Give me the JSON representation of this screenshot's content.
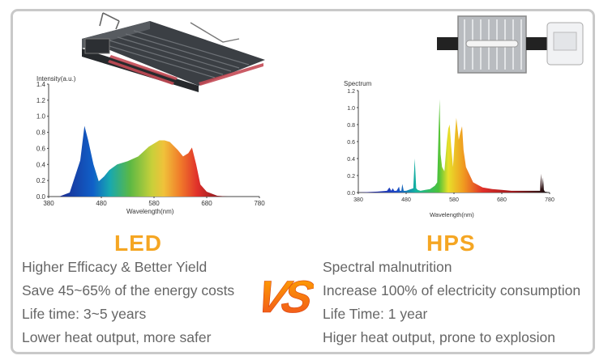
{
  "colors": {
    "accent": "#f5a623",
    "vs_gradient_top": "#ffa800",
    "vs_gradient_bottom": "#f04e1e",
    "text": "#666666",
    "frame": "#c9c9c9"
  },
  "icons": {
    "led_fixture": "led-grow-light-bar",
    "hps_fixture": "hps-reflector-lamp",
    "vs_logo": "versus-logo"
  },
  "led": {
    "heading": "LED",
    "features": [
      "Higher Efficacy & Better Yield",
      "Save 45~65% of the energy costs",
      "Life time: 3~5 years",
      "Lower heat output, more safer"
    ],
    "chart": {
      "ylabel": "Intensity(a.u.)",
      "xlabel": "Wavelength(nm)",
      "yticks": [
        "0.0",
        "0.2",
        "0.4",
        "0.6",
        "0.8",
        "1.0",
        "1.2",
        "1.4"
      ],
      "xticks": [
        "380",
        "480",
        "580",
        "680",
        "780"
      ]
    }
  },
  "hps": {
    "heading": "HPS",
    "features": [
      "Spectral malnutrition",
      "Increase 100% of electricity consumption",
      "Life Time: 1 year",
      "Higer heat output, prone to explosion"
    ],
    "chart": {
      "ylabel": "Spectrum",
      "xlabel": "Wavelength(nm)",
      "yticks": [
        "0.0",
        "0.2",
        "0.4",
        "0.6",
        "0.8",
        "1.0",
        "1.2"
      ],
      "xticks": [
        "380",
        "480",
        "580",
        "680",
        "780"
      ]
    }
  },
  "vs_text": "VS",
  "chart_data": [
    {
      "type": "area",
      "title": "",
      "xlabel": "Wavelength(nm)",
      "ylabel": "Intensity(a.u.)",
      "xlim": [
        380,
        780
      ],
      "ylim": [
        0,
        1.4
      ],
      "series": [
        {
          "x": [
            400,
            420,
            440,
            448,
            455,
            465,
            475,
            485,
            495,
            510,
            530,
            550,
            570,
            590,
            600,
            610,
            625,
            635,
            645,
            652,
            660,
            668,
            680,
            700,
            720
          ],
          "values": [
            0.0,
            0.05,
            0.45,
            0.88,
            0.7,
            0.4,
            0.19,
            0.25,
            0.33,
            0.4,
            0.44,
            0.5,
            0.62,
            0.7,
            0.7,
            0.68,
            0.58,
            0.5,
            0.54,
            0.61,
            0.4,
            0.15,
            0.06,
            0.01,
            0.0
          ]
        }
      ]
    },
    {
      "type": "area",
      "title": "",
      "xlabel": "Wavelength(nm)",
      "ylabel": "Spectrum",
      "xlim": [
        380,
        780
      ],
      "ylim": [
        0,
        1.2
      ],
      "series": [
        {
          "x": [
            380,
            420,
            440,
            445,
            449,
            452,
            455,
            460,
            465,
            467,
            470,
            472,
            475,
            480,
            490,
            495,
            498,
            501,
            504,
            510,
            520,
            530,
            540,
            545,
            548,
            550,
            552,
            555,
            560,
            565,
            568,
            571,
            574,
            578,
            582,
            585,
            590,
            593,
            597,
            600,
            605,
            615,
            620,
            630,
            640,
            660,
            680,
            700,
            720,
            760,
            762,
            764,
            766,
            768,
            770,
            780
          ],
          "values": [
            0.0,
            0.01,
            0.02,
            0.06,
            0.02,
            0.05,
            0.02,
            0.02,
            0.07,
            0.02,
            0.02,
            0.1,
            0.02,
            0.02,
            0.04,
            0.05,
            0.4,
            0.05,
            0.03,
            0.02,
            0.03,
            0.04,
            0.08,
            0.12,
            0.75,
            1.1,
            0.45,
            0.3,
            0.25,
            0.6,
            0.75,
            0.8,
            0.55,
            0.3,
            0.68,
            0.88,
            0.62,
            0.7,
            0.78,
            0.5,
            0.3,
            0.18,
            0.12,
            0.09,
            0.06,
            0.04,
            0.03,
            0.02,
            0.02,
            0.02,
            0.22,
            0.04,
            0.18,
            0.03,
            0.01,
            0.0
          ]
        }
      ]
    }
  ]
}
